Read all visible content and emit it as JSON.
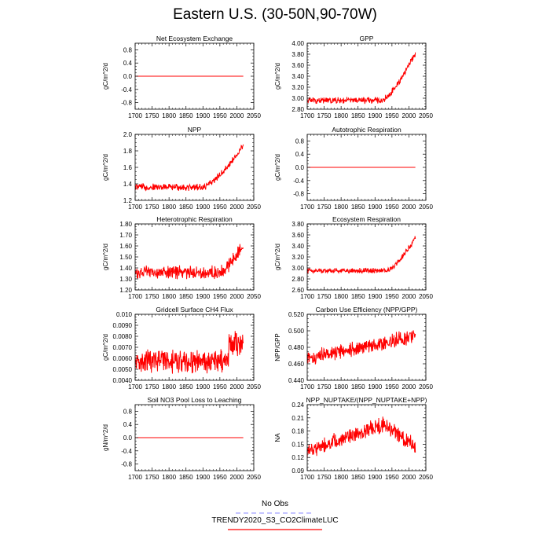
{
  "title": "Eastern U.S. (30-50N,90-70W)",
  "legend": {
    "items": [
      {
        "label": "No Obs",
        "color": "#8888ff",
        "style": "dashed"
      },
      {
        "label": "TRENDY2020_S3_CO2ClimateLUC",
        "color": "#ff0000",
        "style": "solid"
      }
    ]
  },
  "chart_data": [
    {
      "type": "line",
      "title": "Net Ecosystem Exchange",
      "ylabel": "gC/m^2/d",
      "xlim": [
        1700,
        2050
      ],
      "ylim": [
        -1.0,
        1.0
      ],
      "xticks": [
        "1700",
        "1750",
        "1800",
        "1850",
        "1900",
        "1950",
        "2000",
        "2050"
      ],
      "yticks": [
        "-0.8",
        "-0.4",
        "0.0",
        "0.4",
        "0.8"
      ],
      "ytick_values": [
        -0.8,
        -0.4,
        0.0,
        0.4,
        0.8
      ],
      "series": [
        {
          "name": "TRENDY2020_S3_CO2ClimateLUC",
          "color": "#ff0000",
          "x_range": [
            1700,
            2019
          ],
          "shape": "flat",
          "base": 0.0,
          "end": 0.0,
          "noise": 0.0
        }
      ]
    },
    {
      "type": "line",
      "title": "GPP",
      "ylabel": "gC/m^2/d",
      "xlim": [
        1700,
        2050
      ],
      "ylim": [
        2.8,
        4.0
      ],
      "xticks": [
        "1700",
        "1750",
        "1800",
        "1850",
        "1900",
        "1950",
        "2000",
        "2050"
      ],
      "yticks": [
        "2.80",
        "3.00",
        "3.20",
        "3.40",
        "3.60",
        "3.80",
        "4.00"
      ],
      "ytick_values": [
        2.8,
        3.0,
        3.2,
        3.4,
        3.6,
        3.8,
        4.0
      ],
      "series": [
        {
          "name": "TRENDY2020_S3_CO2ClimateLUC",
          "color": "#ff0000",
          "x_range": [
            1700,
            2019
          ],
          "shape": "rise",
          "base": 2.96,
          "rise_start": 1920,
          "end": 3.82,
          "noise": 0.05
        }
      ]
    },
    {
      "type": "line",
      "title": "NPP",
      "ylabel": "gC/m^2/d",
      "xlim": [
        1700,
        2050
      ],
      "ylim": [
        1.2,
        2.0
      ],
      "xticks": [
        "1700",
        "1750",
        "1800",
        "1850",
        "1900",
        "1950",
        "2000",
        "2050"
      ],
      "yticks": [
        "1.2",
        "1.4",
        "1.6",
        "1.8",
        "2.0"
      ],
      "ytick_values": [
        1.2,
        1.4,
        1.6,
        1.8,
        2.0
      ],
      "series": [
        {
          "name": "TRENDY2020_S3_CO2ClimateLUC",
          "color": "#ff0000",
          "x_range": [
            1700,
            2019
          ],
          "shape": "rise",
          "base": 1.36,
          "rise_start": 1900,
          "end": 1.86,
          "noise": 0.035
        }
      ]
    },
    {
      "type": "line",
      "title": "Autotrophic Respiration",
      "ylabel": "gC/m^2/d",
      "xlim": [
        1700,
        2050
      ],
      "ylim": [
        -1.0,
        1.0
      ],
      "xticks": [
        "1700",
        "1750",
        "1800",
        "1850",
        "1900",
        "1950",
        "2000",
        "2050"
      ],
      "yticks": [
        "-0.8",
        "-0.4",
        "0.0",
        "0.4",
        "0.8"
      ],
      "ytick_values": [
        -0.8,
        -0.4,
        0.0,
        0.4,
        0.8
      ],
      "series": [
        {
          "name": "TRENDY2020_S3_CO2ClimateLUC",
          "color": "#ff0000",
          "x_range": [
            1700,
            2019
          ],
          "shape": "flat",
          "base": 0.0,
          "end": 0.0,
          "noise": 0.0
        }
      ]
    },
    {
      "type": "line",
      "title": "Heterotrophic Respiration",
      "ylabel": "gC/m^2/d",
      "xlim": [
        1700,
        2050
      ],
      "ylim": [
        1.2,
        1.8
      ],
      "xticks": [
        "1700",
        "1750",
        "1800",
        "1850",
        "1900",
        "1950",
        "2000",
        "2050"
      ],
      "yticks": [
        "1.20",
        "1.30",
        "1.40",
        "1.50",
        "1.60",
        "1.70",
        "1.80"
      ],
      "ytick_values": [
        1.2,
        1.3,
        1.4,
        1.5,
        1.6,
        1.7,
        1.8
      ],
      "series": [
        {
          "name": "TRENDY2020_S3_CO2ClimateLUC",
          "color": "#ff0000",
          "x_range": [
            1700,
            2019
          ],
          "shape": "rise",
          "base": 1.36,
          "rise_start": 1950,
          "end": 1.62,
          "noise": 0.05
        }
      ]
    },
    {
      "type": "line",
      "title": "Ecosystem Respiration",
      "ylabel": "gC/m^2/d",
      "xlim": [
        1700,
        2050
      ],
      "ylim": [
        2.6,
        3.8
      ],
      "xticks": [
        "1700",
        "1750",
        "1800",
        "1850",
        "1900",
        "1950",
        "2000",
        "2050"
      ],
      "yticks": [
        "2.60",
        "2.80",
        "3.00",
        "3.20",
        "3.40",
        "3.60",
        "3.80"
      ],
      "ytick_values": [
        2.6,
        2.8,
        3.0,
        3.2,
        3.4,
        3.6,
        3.8
      ],
      "series": [
        {
          "name": "TRENDY2020_S3_CO2ClimateLUC",
          "color": "#ff0000",
          "x_range": [
            1700,
            2019
          ],
          "shape": "rise",
          "base": 2.95,
          "rise_start": 1935,
          "end": 3.55,
          "noise": 0.04
        }
      ]
    },
    {
      "type": "line",
      "title": "Gridcell Surface CH4 Flux",
      "ylabel": "gC/m^2/d",
      "xlim": [
        1700,
        2050
      ],
      "ylim": [
        0.004,
        0.01
      ],
      "xticks": [
        "1700",
        "1750",
        "1800",
        "1850",
        "1900",
        "1950",
        "2000",
        "2050"
      ],
      "yticks": [
        "0.0040",
        "0.0050",
        "0.0060",
        "0.0070",
        "0.0080",
        "0.0090",
        "0.010"
      ],
      "ytick_values": [
        0.004,
        0.005,
        0.006,
        0.007,
        0.008,
        0.009,
        0.01
      ],
      "series": [
        {
          "name": "TRENDY2020_S3_CO2ClimateLUC",
          "color": "#ff0000",
          "x_range": [
            1700,
            2019
          ],
          "shape": "step",
          "base": 0.0057,
          "rise_start": 1975,
          "end": 0.0073,
          "noise": 0.0009
        }
      ]
    },
    {
      "type": "line",
      "title": "Carbon Use Efficiency (NPP/GPP)",
      "ylabel": "NPP/GPP",
      "xlim": [
        1700,
        2050
      ],
      "ylim": [
        0.44,
        0.52
      ],
      "xticks": [
        "1700",
        "1750",
        "1800",
        "1850",
        "1900",
        "1950",
        "2000",
        "2050"
      ],
      "yticks": [
        "0.440",
        "0.460",
        "0.480",
        "0.500",
        "0.520"
      ],
      "ytick_values": [
        0.44,
        0.46,
        0.48,
        0.5,
        0.52
      ],
      "series": [
        {
          "name": "TRENDY2020_S3_CO2ClimateLUC",
          "color": "#ff0000",
          "x_range": [
            1700,
            2019
          ],
          "shape": "linear",
          "base": 0.466,
          "end": 0.494,
          "noise": 0.008
        }
      ]
    },
    {
      "type": "line",
      "title": "Soil NO3 Pool Loss to Leaching",
      "ylabel": "gN/m^2/d",
      "xlim": [
        1700,
        2050
      ],
      "ylim": [
        -1.0,
        1.0
      ],
      "xticks": [
        "1700",
        "1750",
        "1800",
        "1850",
        "1900",
        "1950",
        "2000",
        "2050"
      ],
      "yticks": [
        "-0.8",
        "-0.4",
        "0.0",
        "0.4",
        "0.8"
      ],
      "ytick_values": [
        -0.8,
        -0.4,
        0.0,
        0.4,
        0.8
      ],
      "series": [
        {
          "name": "TRENDY2020_S3_CO2ClimateLUC",
          "color": "#ff0000",
          "x_range": [
            1700,
            2019
          ],
          "shape": "flat",
          "base": 0.0,
          "end": 0.0,
          "noise": 0.0
        }
      ]
    },
    {
      "type": "line",
      "title": "NPP_NUPTAKE/(NPP_NUPTAKE+NPP)",
      "ylabel": "NA",
      "xlim": [
        1700,
        2050
      ],
      "ylim": [
        0.09,
        0.24
      ],
      "xticks": [
        "1700",
        "1750",
        "1800",
        "1850",
        "1900",
        "1950",
        "2000",
        "2050"
      ],
      "yticks": [
        "0.09",
        "0.12",
        "0.15",
        "0.18",
        "0.21",
        "0.24"
      ],
      "ytick_values": [
        0.09,
        0.12,
        0.15,
        0.18,
        0.21,
        0.24
      ],
      "series": [
        {
          "name": "TRENDY2020_S3_CO2ClimateLUC",
          "color": "#ff0000",
          "x_range": [
            1700,
            2019
          ],
          "shape": "hump",
          "base": 0.135,
          "peak": 0.195,
          "peak_year": 1925,
          "end": 0.145,
          "noise": 0.015
        }
      ]
    }
  ]
}
